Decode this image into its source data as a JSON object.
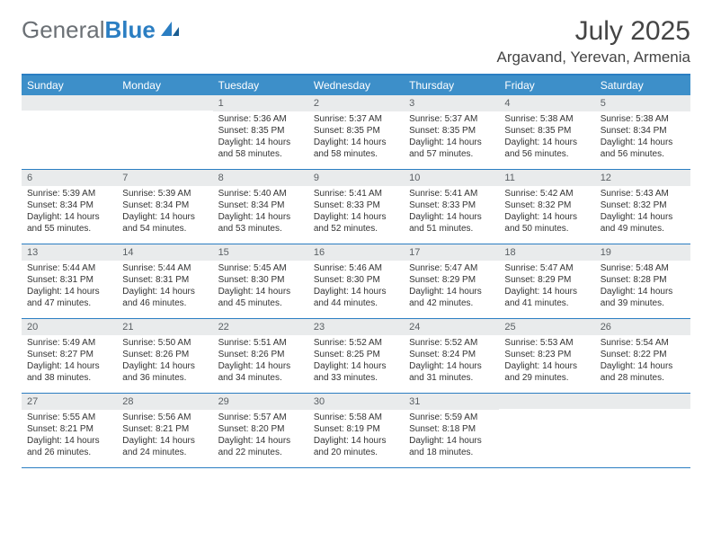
{
  "logo": {
    "text_gray": "General",
    "text_blue": "Blue"
  },
  "title": {
    "month": "July 2025",
    "location": "Argavand, Yerevan, Armenia"
  },
  "header_bg": "#3d8fc9",
  "header_border": "#2b7ec2",
  "daynum_bg": "#e9ebec",
  "days_of_week": [
    "Sunday",
    "Monday",
    "Tuesday",
    "Wednesday",
    "Thursday",
    "Friday",
    "Saturday"
  ],
  "weeks": [
    [
      {
        "n": "",
        "lines": [
          "",
          "",
          "",
          ""
        ]
      },
      {
        "n": "",
        "lines": [
          "",
          "",
          "",
          ""
        ]
      },
      {
        "n": "1",
        "lines": [
          "Sunrise: 5:36 AM",
          "Sunset: 8:35 PM",
          "Daylight: 14 hours",
          "and 58 minutes."
        ]
      },
      {
        "n": "2",
        "lines": [
          "Sunrise: 5:37 AM",
          "Sunset: 8:35 PM",
          "Daylight: 14 hours",
          "and 58 minutes."
        ]
      },
      {
        "n": "3",
        "lines": [
          "Sunrise: 5:37 AM",
          "Sunset: 8:35 PM",
          "Daylight: 14 hours",
          "and 57 minutes."
        ]
      },
      {
        "n": "4",
        "lines": [
          "Sunrise: 5:38 AM",
          "Sunset: 8:35 PM",
          "Daylight: 14 hours",
          "and 56 minutes."
        ]
      },
      {
        "n": "5",
        "lines": [
          "Sunrise: 5:38 AM",
          "Sunset: 8:34 PM",
          "Daylight: 14 hours",
          "and 56 minutes."
        ]
      }
    ],
    [
      {
        "n": "6",
        "lines": [
          "Sunrise: 5:39 AM",
          "Sunset: 8:34 PM",
          "Daylight: 14 hours",
          "and 55 minutes."
        ]
      },
      {
        "n": "7",
        "lines": [
          "Sunrise: 5:39 AM",
          "Sunset: 8:34 PM",
          "Daylight: 14 hours",
          "and 54 minutes."
        ]
      },
      {
        "n": "8",
        "lines": [
          "Sunrise: 5:40 AM",
          "Sunset: 8:34 PM",
          "Daylight: 14 hours",
          "and 53 minutes."
        ]
      },
      {
        "n": "9",
        "lines": [
          "Sunrise: 5:41 AM",
          "Sunset: 8:33 PM",
          "Daylight: 14 hours",
          "and 52 minutes."
        ]
      },
      {
        "n": "10",
        "lines": [
          "Sunrise: 5:41 AM",
          "Sunset: 8:33 PM",
          "Daylight: 14 hours",
          "and 51 minutes."
        ]
      },
      {
        "n": "11",
        "lines": [
          "Sunrise: 5:42 AM",
          "Sunset: 8:32 PM",
          "Daylight: 14 hours",
          "and 50 minutes."
        ]
      },
      {
        "n": "12",
        "lines": [
          "Sunrise: 5:43 AM",
          "Sunset: 8:32 PM",
          "Daylight: 14 hours",
          "and 49 minutes."
        ]
      }
    ],
    [
      {
        "n": "13",
        "lines": [
          "Sunrise: 5:44 AM",
          "Sunset: 8:31 PM",
          "Daylight: 14 hours",
          "and 47 minutes."
        ]
      },
      {
        "n": "14",
        "lines": [
          "Sunrise: 5:44 AM",
          "Sunset: 8:31 PM",
          "Daylight: 14 hours",
          "and 46 minutes."
        ]
      },
      {
        "n": "15",
        "lines": [
          "Sunrise: 5:45 AM",
          "Sunset: 8:30 PM",
          "Daylight: 14 hours",
          "and 45 minutes."
        ]
      },
      {
        "n": "16",
        "lines": [
          "Sunrise: 5:46 AM",
          "Sunset: 8:30 PM",
          "Daylight: 14 hours",
          "and 44 minutes."
        ]
      },
      {
        "n": "17",
        "lines": [
          "Sunrise: 5:47 AM",
          "Sunset: 8:29 PM",
          "Daylight: 14 hours",
          "and 42 minutes."
        ]
      },
      {
        "n": "18",
        "lines": [
          "Sunrise: 5:47 AM",
          "Sunset: 8:29 PM",
          "Daylight: 14 hours",
          "and 41 minutes."
        ]
      },
      {
        "n": "19",
        "lines": [
          "Sunrise: 5:48 AM",
          "Sunset: 8:28 PM",
          "Daylight: 14 hours",
          "and 39 minutes."
        ]
      }
    ],
    [
      {
        "n": "20",
        "lines": [
          "Sunrise: 5:49 AM",
          "Sunset: 8:27 PM",
          "Daylight: 14 hours",
          "and 38 minutes."
        ]
      },
      {
        "n": "21",
        "lines": [
          "Sunrise: 5:50 AM",
          "Sunset: 8:26 PM",
          "Daylight: 14 hours",
          "and 36 minutes."
        ]
      },
      {
        "n": "22",
        "lines": [
          "Sunrise: 5:51 AM",
          "Sunset: 8:26 PM",
          "Daylight: 14 hours",
          "and 34 minutes."
        ]
      },
      {
        "n": "23",
        "lines": [
          "Sunrise: 5:52 AM",
          "Sunset: 8:25 PM",
          "Daylight: 14 hours",
          "and 33 minutes."
        ]
      },
      {
        "n": "24",
        "lines": [
          "Sunrise: 5:52 AM",
          "Sunset: 8:24 PM",
          "Daylight: 14 hours",
          "and 31 minutes."
        ]
      },
      {
        "n": "25",
        "lines": [
          "Sunrise: 5:53 AM",
          "Sunset: 8:23 PM",
          "Daylight: 14 hours",
          "and 29 minutes."
        ]
      },
      {
        "n": "26",
        "lines": [
          "Sunrise: 5:54 AM",
          "Sunset: 8:22 PM",
          "Daylight: 14 hours",
          "and 28 minutes."
        ]
      }
    ],
    [
      {
        "n": "27",
        "lines": [
          "Sunrise: 5:55 AM",
          "Sunset: 8:21 PM",
          "Daylight: 14 hours",
          "and 26 minutes."
        ]
      },
      {
        "n": "28",
        "lines": [
          "Sunrise: 5:56 AM",
          "Sunset: 8:21 PM",
          "Daylight: 14 hours",
          "and 24 minutes."
        ]
      },
      {
        "n": "29",
        "lines": [
          "Sunrise: 5:57 AM",
          "Sunset: 8:20 PM",
          "Daylight: 14 hours",
          "and 22 minutes."
        ]
      },
      {
        "n": "30",
        "lines": [
          "Sunrise: 5:58 AM",
          "Sunset: 8:19 PM",
          "Daylight: 14 hours",
          "and 20 minutes."
        ]
      },
      {
        "n": "31",
        "lines": [
          "Sunrise: 5:59 AM",
          "Sunset: 8:18 PM",
          "Daylight: 14 hours",
          "and 18 minutes."
        ]
      },
      {
        "n": "",
        "lines": [
          "",
          "",
          "",
          ""
        ]
      },
      {
        "n": "",
        "lines": [
          "",
          "",
          "",
          ""
        ]
      }
    ]
  ]
}
